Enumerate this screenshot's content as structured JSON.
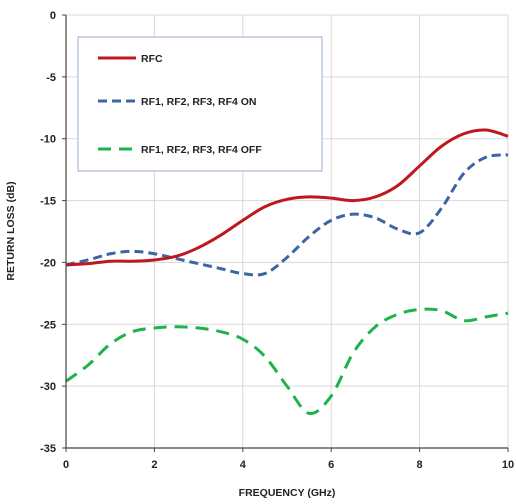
{
  "chart_data": {
    "type": "line",
    "title": "",
    "xlabel": "FREQUENCY (GHz)",
    "ylabel": "RETURN LOSS (dB)",
    "xlim": [
      0,
      10
    ],
    "ylim": [
      -35,
      0
    ],
    "xticks": [
      "0",
      "2",
      "4",
      "6",
      "8",
      "10"
    ],
    "yticks": [
      "0",
      "-5",
      "-10",
      "-15",
      "-20",
      "-25",
      "-30",
      "-35"
    ],
    "grid": true,
    "legend_position": "top-left",
    "series": [
      {
        "name": "RFC",
        "color": "#c0171d",
        "style": "solid",
        "x": [
          0,
          0.5,
          1,
          1.5,
          2,
          2.5,
          3,
          3.5,
          4,
          4.5,
          5,
          5.5,
          6,
          6.5,
          7,
          7.5,
          8,
          8.5,
          9,
          9.5,
          10
        ],
        "y": [
          -20.2,
          -20.1,
          -19.9,
          -19.9,
          -19.8,
          -19.5,
          -18.8,
          -17.8,
          -16.6,
          -15.5,
          -14.9,
          -14.7,
          -14.8,
          -15.0,
          -14.7,
          -13.8,
          -12.2,
          -10.6,
          -9.6,
          -9.3,
          -9.8
        ]
      },
      {
        "name": "RF1, RF2, RF3, RF4 ON",
        "color": "#3d65a4",
        "style": "dashed",
        "x": [
          0,
          0.5,
          1,
          1.5,
          2,
          2.5,
          3,
          3.5,
          4,
          4.5,
          5,
          5.5,
          6,
          6.5,
          7,
          7.5,
          8,
          8.5,
          9,
          9.5,
          10
        ],
        "y": [
          -20.2,
          -19.8,
          -19.3,
          -19.1,
          -19.3,
          -19.7,
          -20.1,
          -20.5,
          -20.9,
          -20.9,
          -19.6,
          -17.9,
          -16.6,
          -16.1,
          -16.4,
          -17.3,
          -17.6,
          -15.6,
          -12.8,
          -11.5,
          -11.3
        ]
      },
      {
        "name": "RF1, RF2, RF3, RF4 OFF",
        "color": "#1db24a",
        "style": "dashed",
        "x": [
          0,
          0.5,
          1,
          1.5,
          2,
          2.5,
          3,
          3.5,
          4,
          4.5,
          5,
          5.5,
          6,
          6.5,
          7,
          7.5,
          8,
          8.5,
          9,
          9.5,
          10
        ],
        "y": [
          -29.6,
          -28.3,
          -26.6,
          -25.6,
          -25.3,
          -25.2,
          -25.3,
          -25.6,
          -26.2,
          -27.6,
          -30.0,
          -32.2,
          -30.8,
          -27.3,
          -25.2,
          -24.2,
          -23.8,
          -23.9,
          -24.7,
          -24.4,
          -24.1
        ]
      }
    ]
  }
}
